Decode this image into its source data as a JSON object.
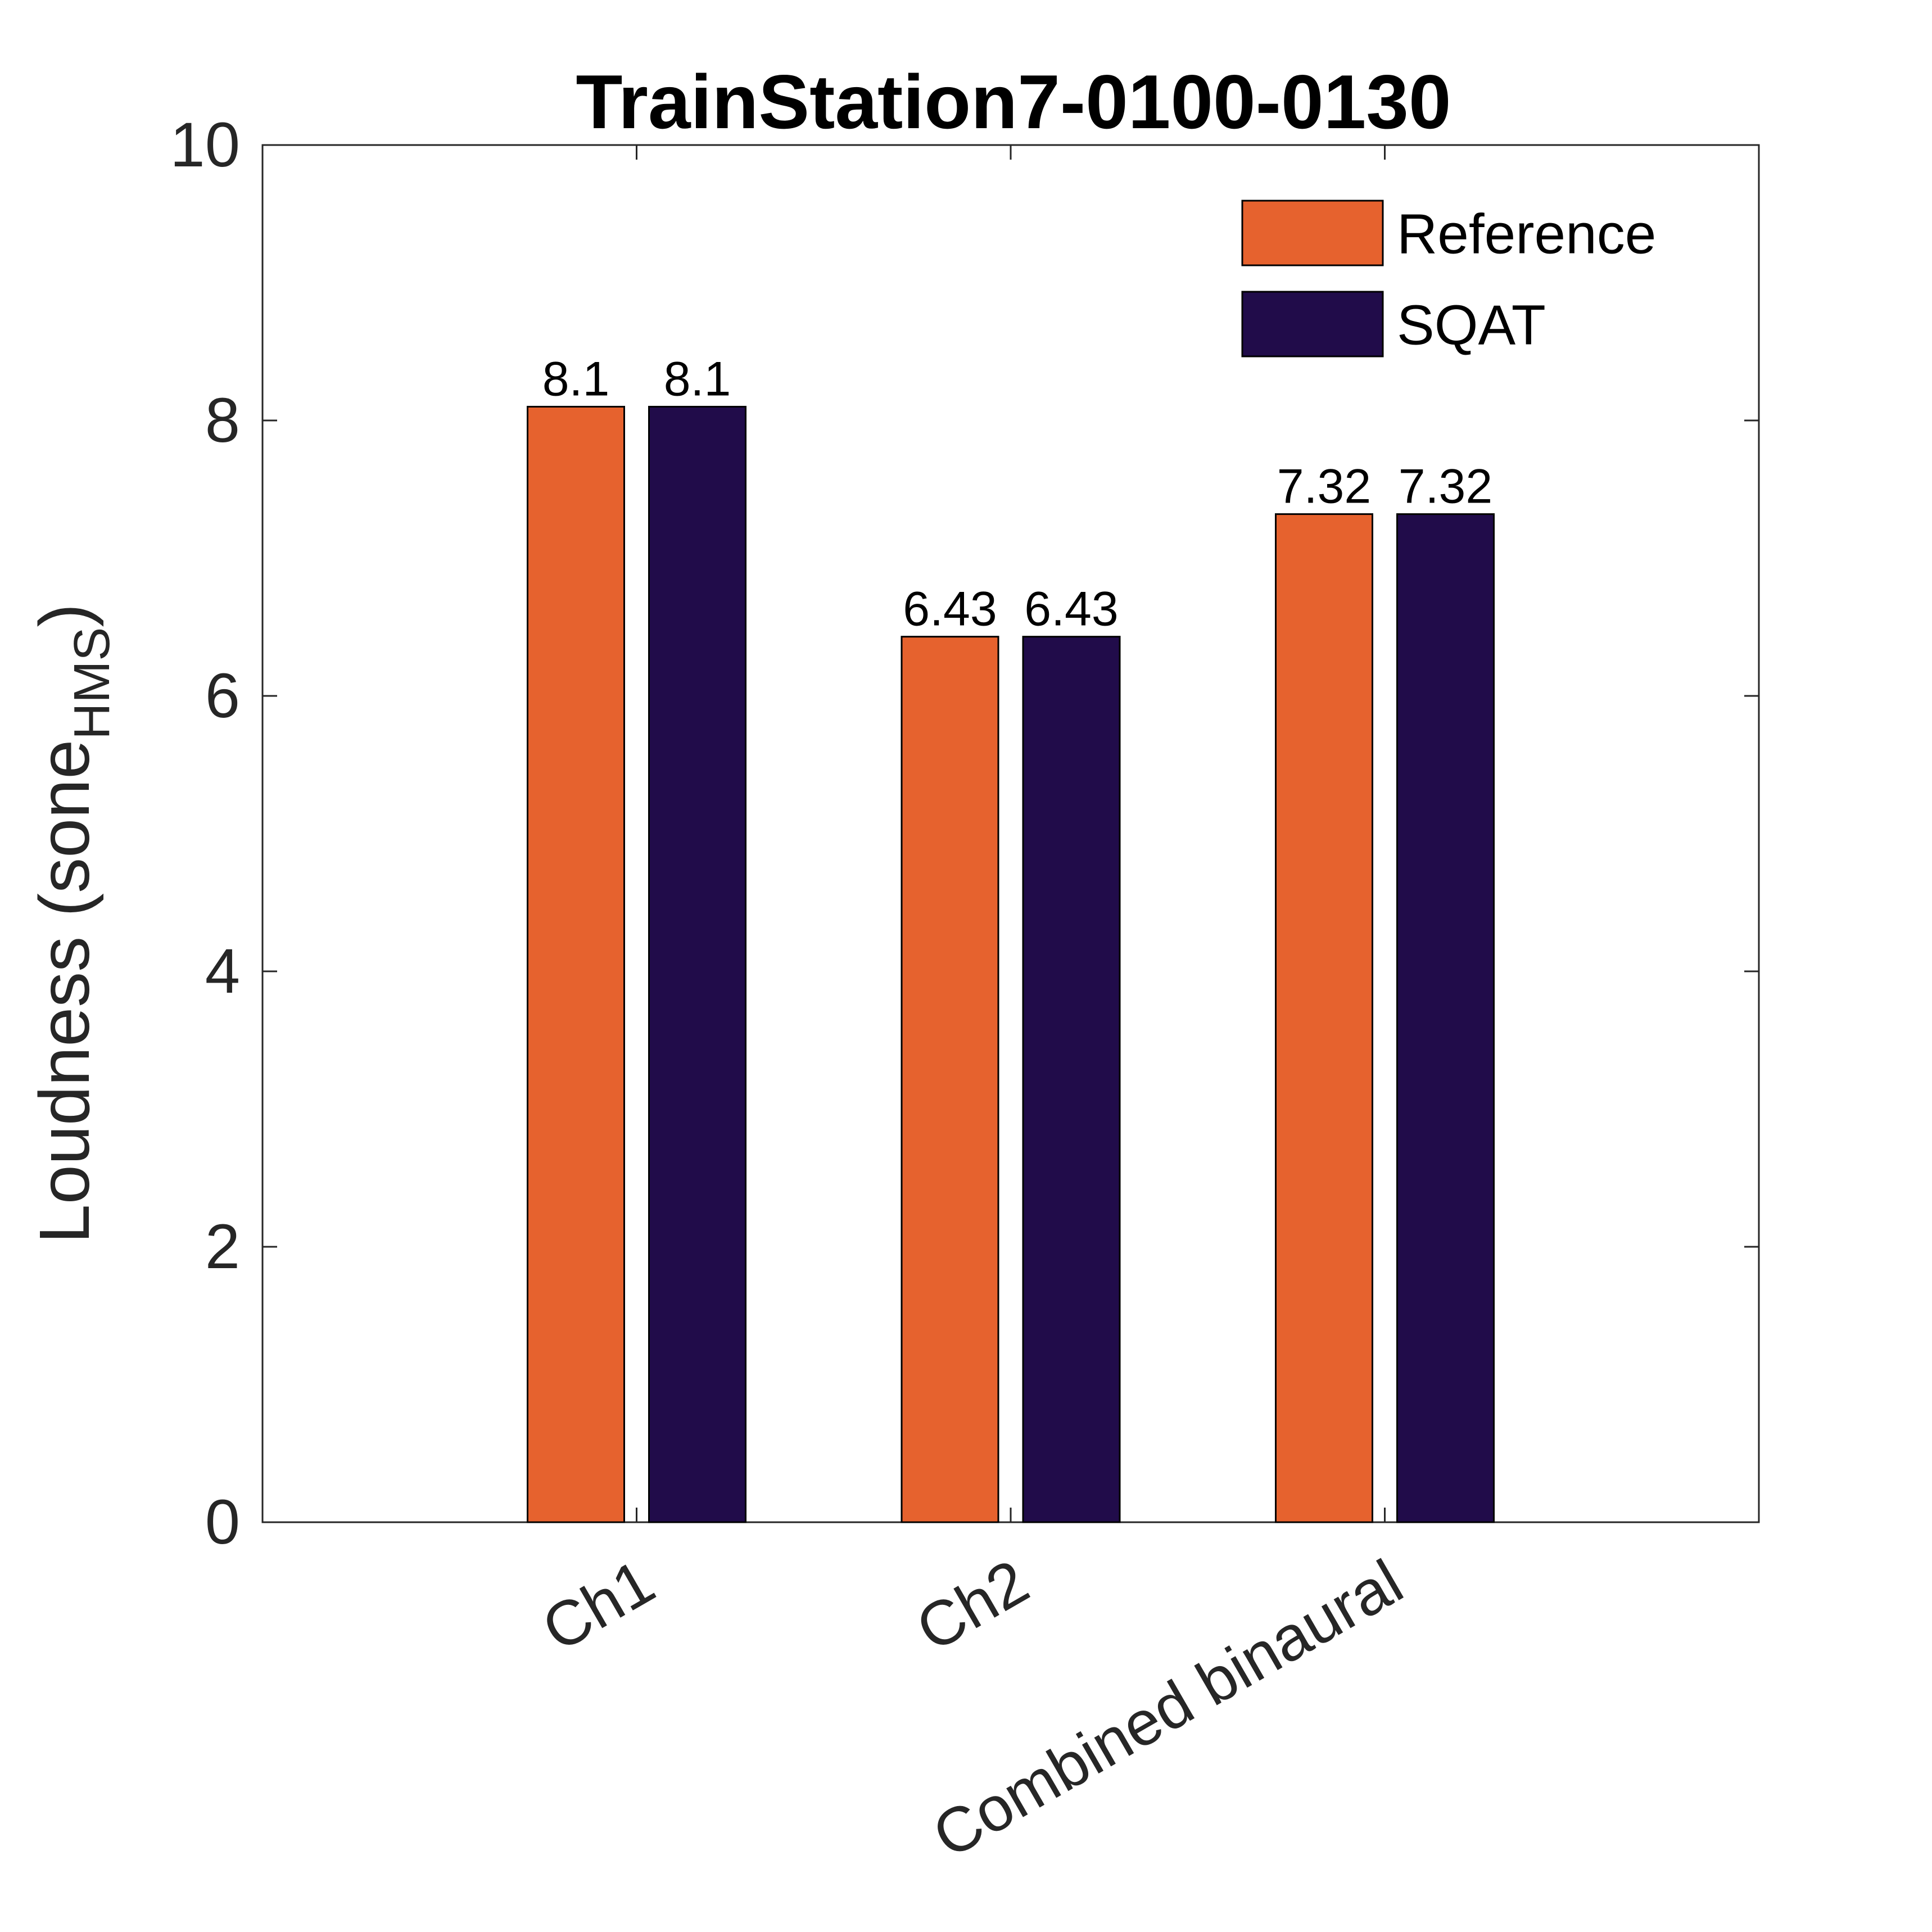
{
  "chart_data": {
    "type": "bar",
    "title": "TrainStation7-0100-0130",
    "ylabel": "Loudness (sone",
    "ylabel_subscript": "HMS",
    "ylabel_close": ")",
    "xlabel": "",
    "categories": [
      "Ch1",
      "Ch2",
      "Combined binaural"
    ],
    "series": [
      {
        "name": "Reference",
        "values": [
          8.1,
          6.43,
          7.32
        ],
        "labels": [
          "8.1",
          "6.43",
          "7.32"
        ],
        "color": "#E6622E"
      },
      {
        "name": "SQAT",
        "values": [
          8.1,
          6.43,
          7.32
        ],
        "labels": [
          "8.1",
          "6.43",
          "7.32"
        ],
        "color": "#210C4A"
      }
    ],
    "ylim": [
      0,
      10
    ],
    "yticks": [
      0,
      2,
      4,
      6,
      8,
      10
    ],
    "ytick_labels": [
      "0",
      "2",
      "4",
      "6",
      "8",
      "10"
    ],
    "grid": false,
    "legend_position": "top-right"
  }
}
